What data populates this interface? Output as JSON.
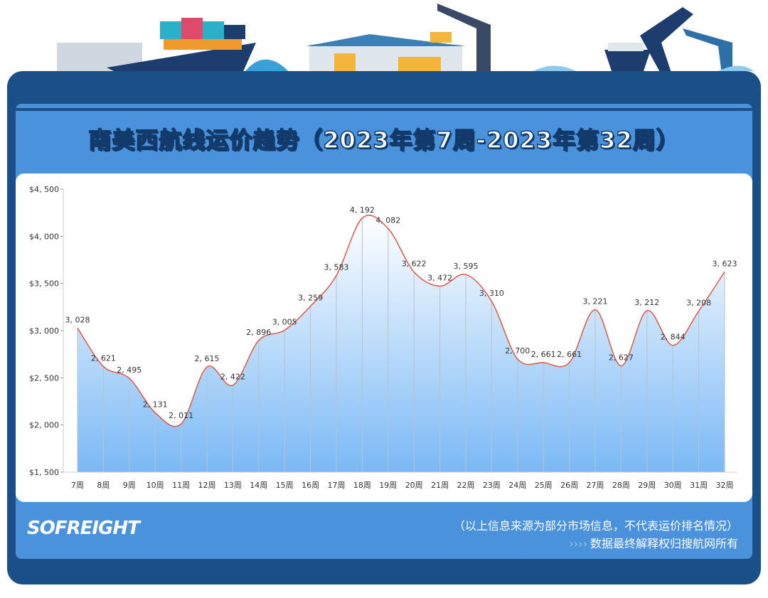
{
  "title": "南美西航线运价趋势（2023年第7周-2023年第32周）",
  "logo": "SOFREIGHT",
  "note_source": "（以上信息来源为部分市场信息，不代表运价排名情况）",
  "note_rights_arrows": "››››",
  "note_rights": "数据最终解释权归搜航网所有",
  "colors": {
    "frame": "#1b4f87",
    "panel": "#4a92dc",
    "line": "#e0584a",
    "fill_top": "#ffffff",
    "fill_bottom": "#7ab9f5"
  },
  "chart_data": {
    "type": "area",
    "title": "南美西航线运价趋势（2023年第7周-2023年第32周）",
    "categories": [
      "7周",
      "8周",
      "9周",
      "10周",
      "11周",
      "12周",
      "13周",
      "14周",
      "15周",
      "16周",
      "17周",
      "18周",
      "19周",
      "20周",
      "21周",
      "22周",
      "23周",
      "24周",
      "25周",
      "26周",
      "27周",
      "28周",
      "29周",
      "30周",
      "31周",
      "32周"
    ],
    "values": [
      3028,
      2621,
      2495,
      2131,
      2011,
      2615,
      2422,
      2896,
      3005,
      3259,
      3583,
      4192,
      4082,
      3622,
      3472,
      3595,
      3310,
      2700,
      2661,
      2661,
      3221,
      2627,
      3212,
      2844,
      3208,
      3623
    ],
    "data_labels": [
      "3, 028",
      "2, 621",
      "2, 495",
      "2, 131",
      "2, 011",
      "2, 615",
      "2, 422",
      "2, 896",
      "3, 005",
      "3, 259",
      "3, 583",
      "4, 192",
      "4, 082",
      "3, 622",
      "3, 472",
      "3, 595",
      "3, 310",
      "2, 700",
      "2, 661",
      "2, 661",
      "3, 221",
      "2, 627",
      "3, 212",
      "2, 844",
      "3, 208",
      "3, 623"
    ],
    "ylim": [
      1500,
      4500
    ],
    "yticks": [
      "$1, 500",
      "$2, 000",
      "$2, 500",
      "$3, 000",
      "$3, 500",
      "$4, 000",
      "$4, 500"
    ],
    "smooth": true,
    "grid": "vertical lines at each category",
    "legend": "none"
  }
}
